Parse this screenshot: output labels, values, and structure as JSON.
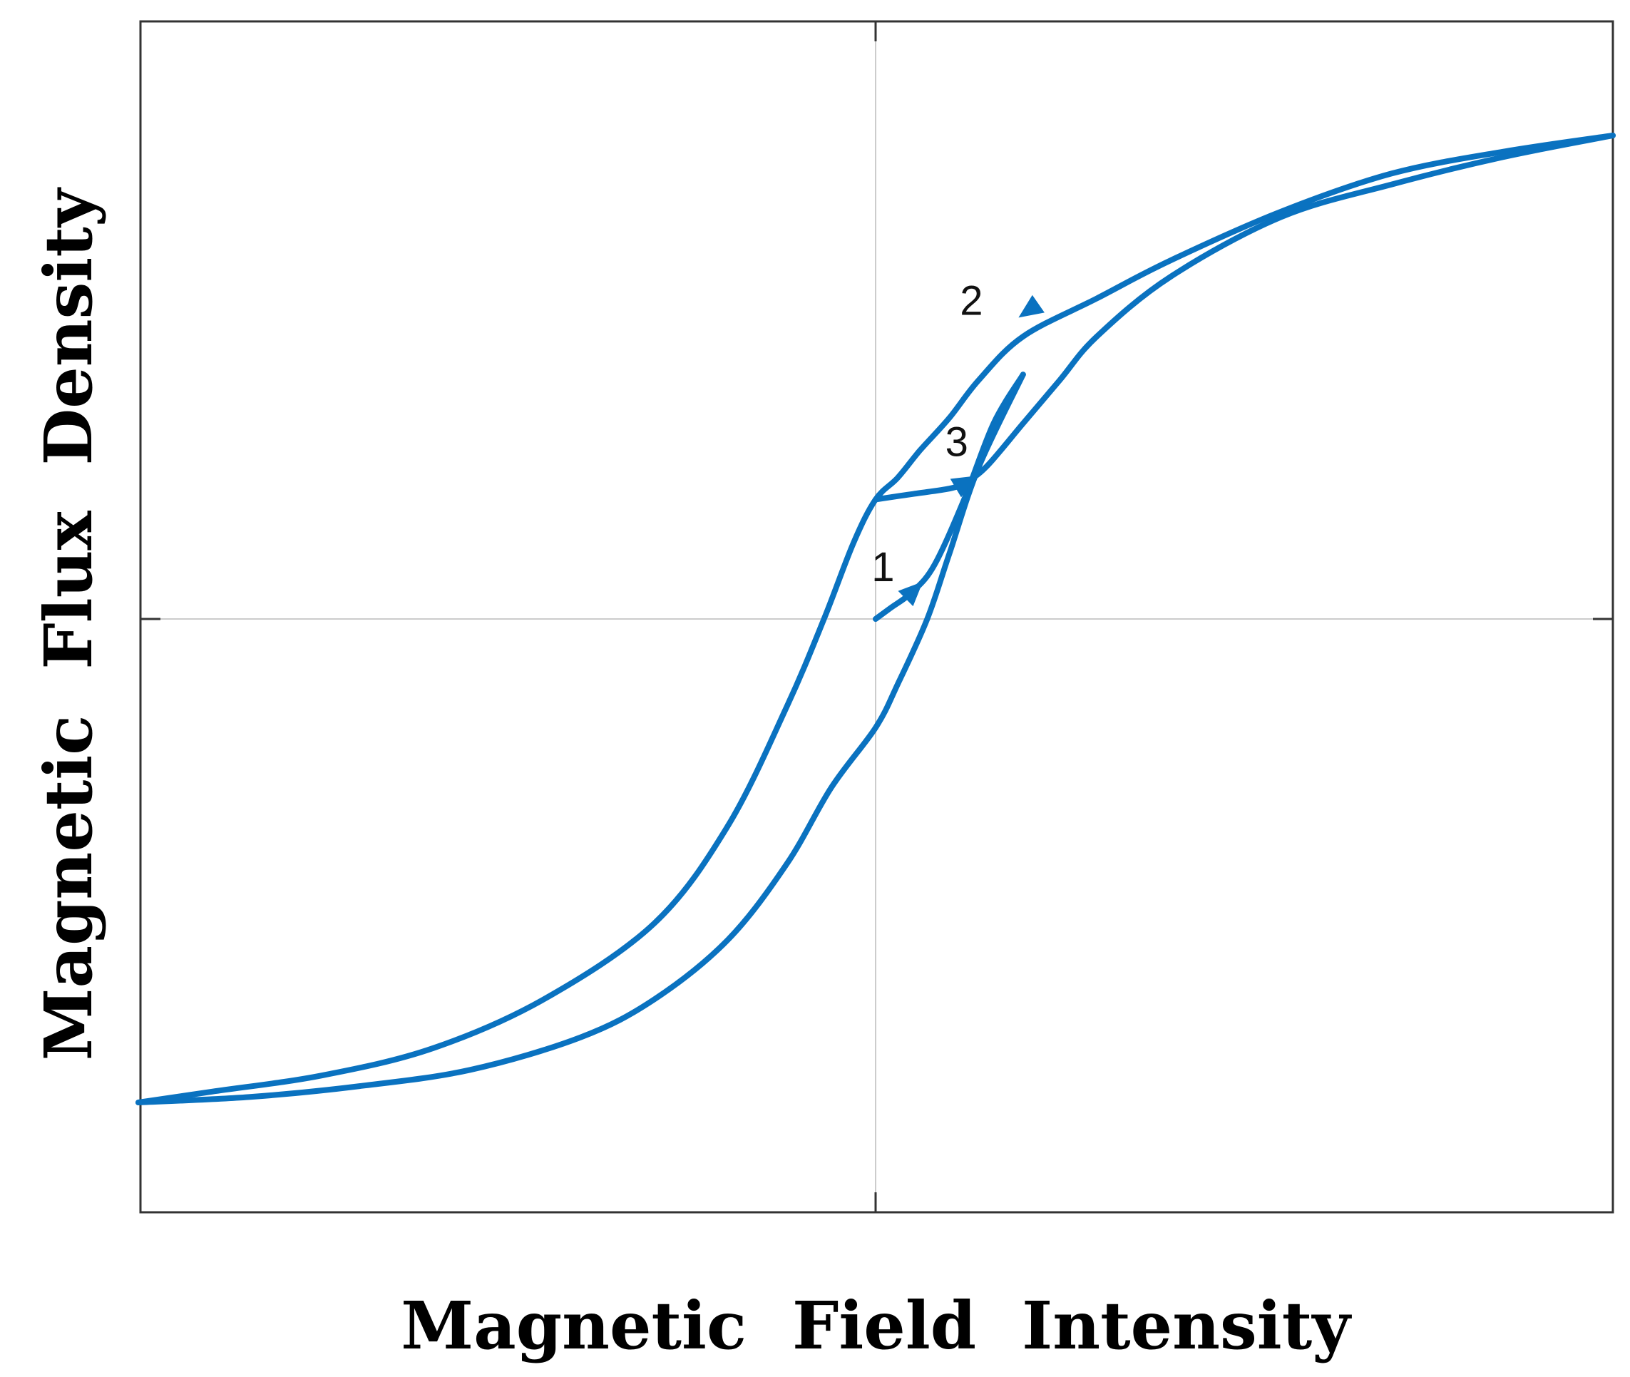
{
  "chart_data": {
    "type": "line",
    "title": "",
    "xlabel": "Magnetic  Field  Intensity",
    "ylabel": "Magnetic  Flux  Density",
    "xlim": [
      -1,
      1
    ],
    "ylim": [
      -1.1,
      1.1
    ],
    "grid": false,
    "legend": "none",
    "zero_lines": true,
    "color": "#0a72c0",
    "series": [
      {
        "label": "1",
        "x": [
          0.0,
          0.02,
          0.05,
          0.08,
          0.12,
          0.16,
          0.2
        ],
        "y": [
          0.0,
          0.02,
          0.05,
          0.1,
          0.22,
          0.36,
          0.45
        ]
      },
      {
        "label": "2",
        "x": [
          1.0,
          0.85,
          0.7,
          0.55,
          0.4,
          0.3,
          0.2,
          0.14,
          0.1,
          0.06,
          0.03,
          0.0,
          -0.03,
          -0.07,
          -0.12,
          -0.2,
          -0.3,
          -0.45,
          -0.6,
          -0.75,
          -0.9,
          -1.0
        ],
        "y": [
          0.89,
          0.86,
          0.82,
          0.75,
          0.66,
          0.59,
          0.52,
          0.44,
          0.37,
          0.31,
          0.26,
          0.22,
          0.14,
          0.0,
          -0.16,
          -0.38,
          -0.56,
          -0.7,
          -0.79,
          -0.84,
          -0.87,
          -0.89
        ]
      },
      {
        "label": "3",
        "x": [
          0.0,
          0.05,
          0.1,
          0.12,
          0.15,
          0.2,
          0.25,
          0.3,
          0.4,
          0.55,
          0.7,
          0.85,
          1.0
        ],
        "y": [
          0.22,
          0.23,
          0.24,
          0.25,
          0.28,
          0.36,
          0.44,
          0.52,
          0.63,
          0.74,
          0.8,
          0.85,
          0.89
        ]
      },
      {
        "label": "",
        "x": [
          -1.0,
          -0.85,
          -0.7,
          -0.55,
          -0.4,
          -0.3,
          -0.2,
          -0.12,
          -0.06,
          0.0,
          0.03,
          0.07,
          0.1,
          0.14,
          0.2
        ],
        "y": [
          -0.89,
          -0.88,
          -0.86,
          -0.83,
          -0.77,
          -0.7,
          -0.59,
          -0.45,
          -0.31,
          -0.2,
          -0.12,
          0.0,
          0.12,
          0.28,
          0.45
        ]
      }
    ],
    "annotations": [
      {
        "text": "1",
        "x": 0.01,
        "y": 0.09
      },
      {
        "text": "2",
        "x": 0.13,
        "y": 0.58
      },
      {
        "text": "3",
        "x": 0.11,
        "y": 0.32
      }
    ],
    "arrows": [
      {
        "series": "1",
        "x": 0.05,
        "y": 0.05,
        "direction": "forward"
      },
      {
        "series": "2",
        "x": 0.21,
        "y": 0.57,
        "direction": "backward"
      },
      {
        "series": "3",
        "x": 0.12,
        "y": 0.25,
        "direction": "forward"
      }
    ]
  }
}
